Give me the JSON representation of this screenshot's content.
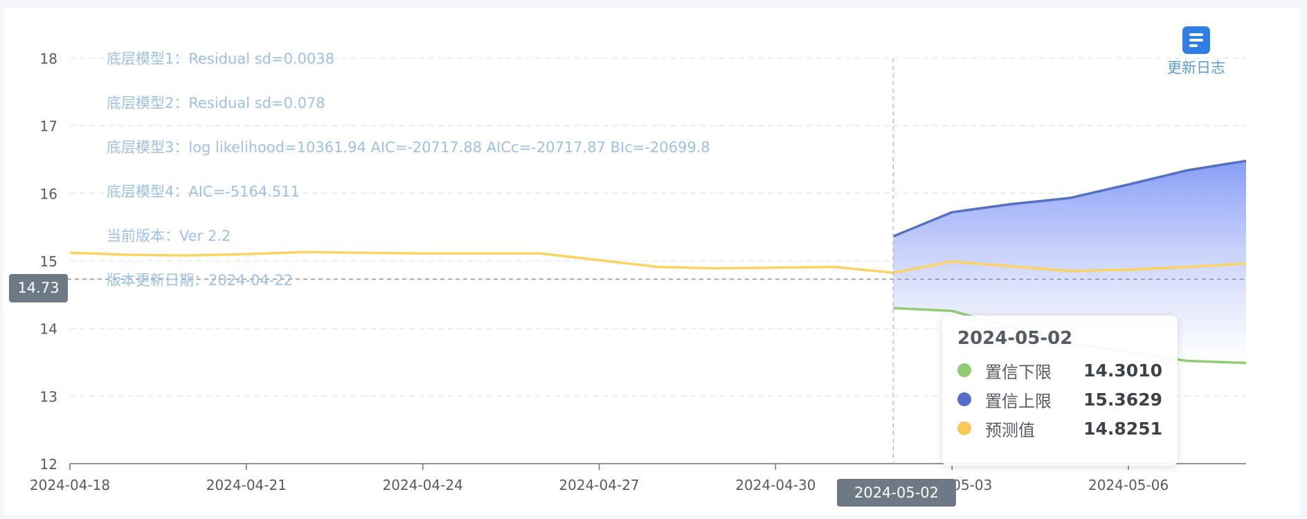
{
  "chart_data": {
    "type": "area",
    "x": [
      "2024-04-18",
      "2024-04-19",
      "2024-04-20",
      "2024-04-21",
      "2024-04-22",
      "2024-04-23",
      "2024-04-24",
      "2024-04-25",
      "2024-04-26",
      "2024-04-27",
      "2024-04-28",
      "2024-04-29",
      "2024-04-30",
      "2024-05-01",
      "2024-05-02",
      "2024-05-03",
      "2024-05-04",
      "2024-05-05",
      "2024-05-06",
      "2024-05-07",
      "2024-05-08"
    ],
    "xticks": [
      "2024-04-18",
      "2024-04-21",
      "2024-04-24",
      "2024-04-27",
      "2024-04-30",
      "2024-05-03",
      "2024-05-06"
    ],
    "xtick_labels": [
      "2024-04-18",
      "2024-04-21",
      "2024-04-24",
      "2024-04-27",
      "2024-04-30",
      "2024-05-03",
      "2024-05-06"
    ],
    "yticks": [
      12,
      13,
      14,
      15,
      16,
      17,
      18
    ],
    "ylim": [
      12,
      18
    ],
    "grid": true,
    "series": [
      {
        "name": "预测值",
        "color": "#fdd35f",
        "x": [
          "2024-04-18",
          "2024-04-19",
          "2024-04-20",
          "2024-04-21",
          "2024-04-22",
          "2024-04-23",
          "2024-04-24",
          "2024-04-25",
          "2024-04-26",
          "2024-04-27",
          "2024-04-28",
          "2024-04-29",
          "2024-04-30",
          "2024-05-01",
          "2024-05-02",
          "2024-05-03",
          "2024-05-04",
          "2024-05-05",
          "2024-05-06",
          "2024-05-07",
          "2024-05-08"
        ],
        "values": [
          15.12,
          15.09,
          15.08,
          15.1,
          15.13,
          15.12,
          15.11,
          15.11,
          15.11,
          15.01,
          14.91,
          14.89,
          14.9,
          14.91,
          14.8251,
          14.99,
          14.92,
          14.85,
          14.87,
          14.91,
          14.96
        ]
      },
      {
        "name": "置信上限",
        "color": "#5470c6",
        "x": [
          "2024-05-02",
          "2024-05-03",
          "2024-05-04",
          "2024-05-05",
          "2024-05-06",
          "2024-05-07",
          "2024-05-08"
        ],
        "values": [
          15.3629,
          15.72,
          15.84,
          15.93,
          16.13,
          16.34,
          16.48
        ]
      },
      {
        "name": "置信下限",
        "color": "#91cc75",
        "x": [
          "2024-05-02",
          "2024-05-03",
          "2024-05-04",
          "2024-05-05",
          "2024-05-06",
          "2024-05-07",
          "2024-05-08"
        ],
        "values": [
          14.301,
          14.26,
          14.02,
          13.78,
          13.65,
          13.52,
          13.49
        ]
      }
    ],
    "annotations": [
      "底层模型1：Residual sd=0.0038",
      "底层模型2：Residual sd=0.078",
      "底层模型3：log likelihood=10361.94 AIC=-20717.88 AICc=-20717.87 BIc=-20699.8",
      "底层模型4：AIC=-5164.511",
      "当前版本：Ver 2.2",
      "版本更新日期：2024-04-22"
    ],
    "crosshair": {
      "x": "2024-05-02",
      "y": 14.73,
      "y_label": "14.73",
      "x_label": "2024-05-02"
    },
    "tooltip": {
      "date": "2024-05-02",
      "rows": [
        {
          "name": "置信下限",
          "value": "14.3010",
          "color": "#91cc75"
        },
        {
          "name": "置信上限",
          "value": "15.3629",
          "color": "#5470c6"
        },
        {
          "name": "预测值",
          "value": "14.8251",
          "color": "#fac858"
        }
      ]
    }
  },
  "toolbar": {
    "changelog_label": "更新日志",
    "changelog_icon": "document-list-icon"
  },
  "colors": {
    "band_top": "#8197f5",
    "band_bottom": "#ffffff",
    "axis": "#6e7079",
    "grid": "#e0e6f1"
  }
}
